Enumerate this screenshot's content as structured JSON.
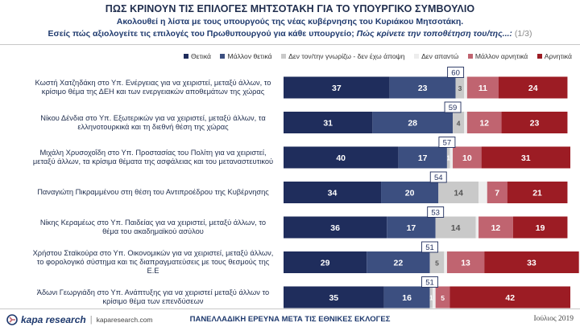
{
  "header": {
    "title": "ΠΩΣ ΚΡΙΝΟΥΝ ΤΙΣ ΕΠΙΛΟΓΕΣ ΜΗΤΣΟΤΑΚΗ ΓΙΑ ΤΟ ΥΠΟΥΡΓΙΚΟ ΣΥΜΒΟΥΛΙΟ",
    "subtitle1": "Ακολουθεί η λίστα με τους υπουργούς της νέας κυβέρνησης του Κυριάκου Μητσοτάκη.",
    "subtitle2_main": "Εσείς πώς αξιολογείτε τις επιλογές του Πρωθυπουργού για κάθε υπουργείο;",
    "subtitle2_question": "Πώς κρίνετε την τοποθέτηση του/της...:",
    "subtitle2_page": "(1/3)"
  },
  "chart_data": {
    "type": "bar",
    "orientation": "horizontal",
    "stacked": true,
    "xlim": [
      0,
      100
    ],
    "series_colors": [
      "#1f2d5c",
      "#3c4f80",
      "#c9c9c9",
      "#ededed",
      "#c06470",
      "#9c1c24"
    ],
    "series": [
      {
        "name": "Θετικά",
        "values": [
          37,
          31,
          40,
          34,
          36,
          29,
          35
        ]
      },
      {
        "name": "Μάλλον θετικά",
        "values": [
          23,
          28,
          17,
          20,
          17,
          22,
          16
        ]
      },
      {
        "name": "Δεν τον/την γνωρίζω - δεν έχω άποψη",
        "values": [
          3,
          4,
          1,
          14,
          14,
          5,
          1
        ]
      },
      {
        "name": "Δεν απαντώ",
        "values": [
          1,
          1,
          1,
          3,
          1,
          1,
          1
        ]
      },
      {
        "name": "Μάλλον αρνητικά",
        "values": [
          11,
          12,
          10,
          7,
          12,
          13,
          5
        ]
      },
      {
        "name": "Αρνητικά",
        "values": [
          24,
          23,
          31,
          21,
          19,
          33,
          42
        ]
      }
    ],
    "totals_label": [
      60,
      59,
      57,
      54,
      53,
      51,
      51
    ],
    "categories": [
      "Κωστή Χατζηδάκη στο Υπ. Ενέργειας για να χειριστεί, μεταξύ άλλων, το κρίσιμο θέμα της ΔΕΗ και των ενεργειακών αποθεμάτων της χώρας",
      "Νίκου Δένδια στο Υπ. Εξωτερικών για να χειριστεί, μεταξύ άλλων, τα ελληνοτουρκικά και τη διεθνή θέση της χώρας",
      "Μιχάλη Χρυσοχοΐδη στο Υπ. Προστασίας του Πολίτη για να χειριστεί, μεταξύ άλλων, τα κρίσιμα θέματα της ασφάλειας και του μεταναστευτικού",
      "Παναγιώτη Πικραμμένου στη θέση του Αντιπροέδρου της Κυβέρνησης",
      "Νίκης Κεραμέως στο Υπ. Παιδείας για να χειριστεί, μεταξύ άλλων, το θέμα του ακαδημαϊκού ασύλου",
      "Χρήστου Σταϊκούρα στο Υπ. Οικονομικών για να χειριστεί, μεταξύ άλλων, το φορολογικό σύστημα και τις διαπραγματεύσεις με τους θεσμούς της Ε.Ε",
      "Άδωνι Γεωργιάδη στο Υπ. Ανάπτυξης για να χειριστεί μεταξύ άλλων το κρίσιμο θέμα των επενδύσεων"
    ]
  },
  "footer": {
    "brand": "kapa research",
    "url": "kaparesearch.com",
    "center": "ΠΑΝΕΛΛΑΔΙΚΗ ΕΡΕΥΝΑ ΜΕΤΑ ΤΙΣ ΕΘΝΙΚΕΣ ΕΚΛΟΓΕΣ",
    "date": "Ιούλιος 2019"
  }
}
